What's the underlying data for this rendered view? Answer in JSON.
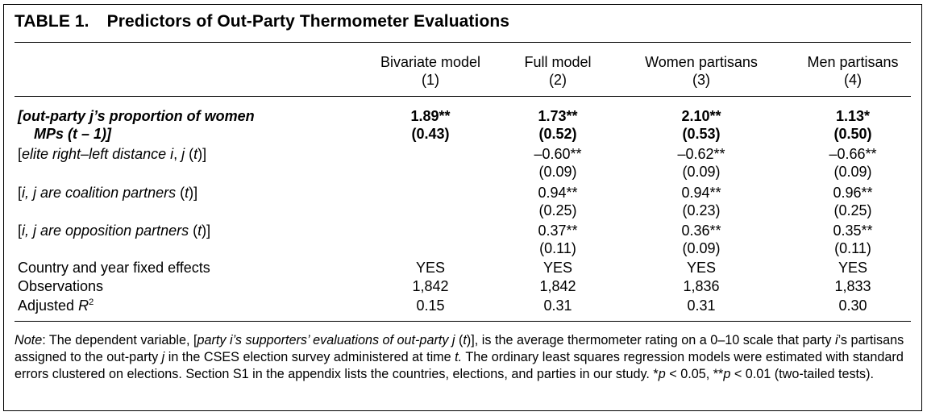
{
  "table": {
    "number": "TABLE 1.",
    "title": "Predictors of Out-Party Thermometer Evaluations",
    "columns": [
      {
        "name": "Bivariate model",
        "num": "(1)"
      },
      {
        "name": "Full model",
        "num": "(2)"
      },
      {
        "name": "Women partisans",
        "num": "(3)"
      },
      {
        "name": "Men partisans",
        "num": "(4)"
      }
    ],
    "rows": {
      "r1": {
        "label_line1": "[out-party j’s proportion of women",
        "label_line2": "MPs (t – 1)]",
        "coef": [
          "1.89**",
          "1.73**",
          "2.10**",
          "1.13*"
        ],
        "se": [
          "(0.43)",
          "(0.52)",
          "(0.53)",
          "(0.50)"
        ]
      },
      "r2": {
        "label_pre": "[",
        "label_it1": "elite right–left distance i",
        "label_mid": ", ",
        "label_it2": "j",
        "label_mid2": " (",
        "label_it3": "t",
        "label_post": ")]",
        "coef": [
          "",
          "–0.60**",
          "–0.62**",
          "–0.66**"
        ],
        "se": [
          "",
          "(0.09)",
          "(0.09)",
          "(0.09)"
        ]
      },
      "r3": {
        "label_pre": "[",
        "label_it1": "i, j are coalition partners",
        "label_mid": " (",
        "label_it2": "t",
        "label_post": ")]",
        "coef": [
          "",
          "0.94**",
          "0.94**",
          "0.96**"
        ],
        "se": [
          "",
          "(0.25)",
          "(0.23)",
          "(0.25)"
        ]
      },
      "r4": {
        "label_pre": "[",
        "label_it1": "i, j are opposition partners",
        "label_mid": " (",
        "label_it2": "t",
        "label_post": ")]",
        "coef": [
          "",
          "0.37**",
          "0.36**",
          "0.35**"
        ],
        "se": [
          "",
          "(0.11)",
          "(0.09)",
          "(0.11)"
        ]
      },
      "r5": {
        "label": "Country and year fixed effects",
        "vals": [
          "YES",
          "YES",
          "YES",
          "YES"
        ]
      },
      "r6": {
        "label": "Observations",
        "vals": [
          "1,842",
          "1,842",
          "1,836",
          "1,833"
        ]
      },
      "r7": {
        "label_pre": "Adjusted ",
        "label_it": "R",
        "label_sup": "2",
        "vals": [
          "0.15",
          "0.31",
          "0.31",
          "0.30"
        ]
      }
    },
    "note": {
      "label": "Note",
      "p1": ": The dependent variable, [",
      "it1": "party i’s supporters’ evaluations of out-party j",
      "p2": " (",
      "it2": "t",
      "p3": ")], is the average thermometer rating on a 0–10 scale that party ",
      "it3": "i",
      "p4": "’s partisans assigned to the out-party ",
      "it4": "j",
      "p5": " in the CSES election survey administered at time ",
      "it5": "t.",
      "p6": " The ordinary least squares regression models were estimated with standard errors clustered on elections. Section S1 in the appendix lists the countries, elections, and parties in our study. *",
      "it6": "p",
      "p7": " < 0.05, **",
      "it7": "p",
      "p8": " < 0.01 (two-tailed tests)."
    }
  }
}
